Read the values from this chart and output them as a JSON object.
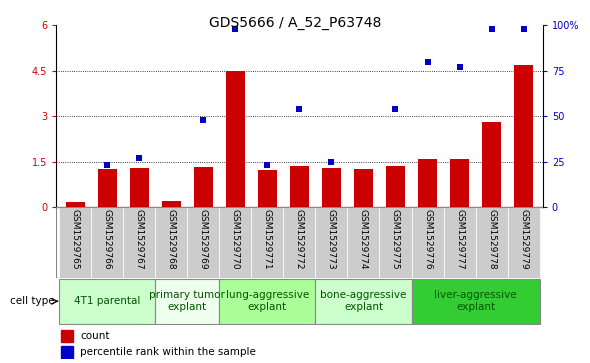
{
  "title": "GDS5666 / A_52_P63748",
  "samples": [
    "GSM1529765",
    "GSM1529766",
    "GSM1529767",
    "GSM1529768",
    "GSM1529769",
    "GSM1529770",
    "GSM1529771",
    "GSM1529772",
    "GSM1529773",
    "GSM1529774",
    "GSM1529775",
    "GSM1529776",
    "GSM1529777",
    "GSM1529778",
    "GSM1529779"
  ],
  "bar_values": [
    0.15,
    1.25,
    1.28,
    0.2,
    1.33,
    4.5,
    1.22,
    1.35,
    1.3,
    1.25,
    1.35,
    1.6,
    1.6,
    2.8,
    4.7
  ],
  "dot_values_pct": [
    null,
    23,
    27,
    null,
    48,
    98,
    23,
    54,
    25,
    null,
    54,
    80,
    77,
    98,
    98
  ],
  "bar_color": "#cc0000",
  "dot_color": "#0000cc",
  "ylim_left": [
    0,
    6
  ],
  "ylim_right": [
    0,
    100
  ],
  "yticks_left": [
    0,
    1.5,
    3,
    4.5,
    6
  ],
  "yticks_right": [
    0,
    25,
    50,
    75,
    100
  ],
  "ytick_labels_left": [
    "0",
    "1.5",
    "3",
    "4.5",
    "6"
  ],
  "ytick_labels_right": [
    "0",
    "25",
    "50",
    "75",
    "100%"
  ],
  "groups": [
    {
      "label": "4T1 parental",
      "start": 0,
      "end": 2,
      "color": "#ccffcc"
    },
    {
      "label": "primary tumor\nexplant",
      "start": 3,
      "end": 4,
      "color": "#eeffee"
    },
    {
      "label": "lung-aggressive\nexplant",
      "start": 5,
      "end": 7,
      "color": "#99ff99"
    },
    {
      "label": "bone-aggressive\nexplant",
      "start": 8,
      "end": 10,
      "color": "#ccffcc"
    },
    {
      "label": "liver-aggressive\nexplant",
      "start": 11,
      "end": 14,
      "color": "#44ee44"
    }
  ],
  "cell_type_label": "cell type",
  "legend_bar_label": "count",
  "legend_dot_label": "percentile rank within the sample",
  "x_bg_color": "#cccccc",
  "title_fontsize": 10,
  "tick_fontsize": 7,
  "group_fontsize": 7.5
}
